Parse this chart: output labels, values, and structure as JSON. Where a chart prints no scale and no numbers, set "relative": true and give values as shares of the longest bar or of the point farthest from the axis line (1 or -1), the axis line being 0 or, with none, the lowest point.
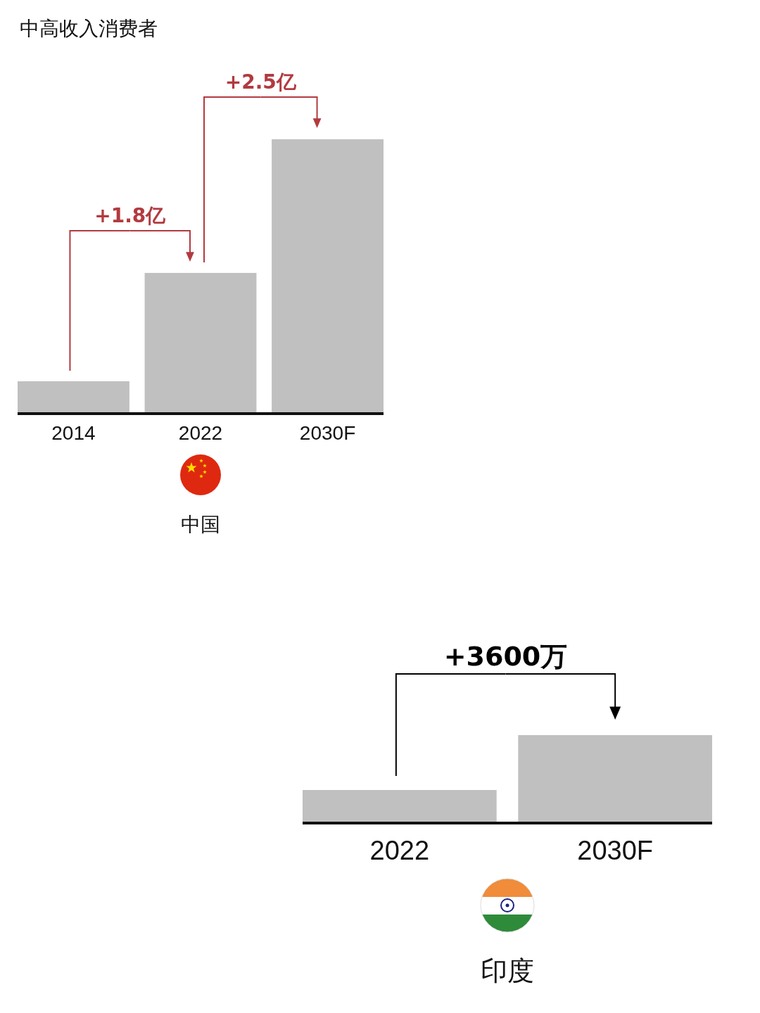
{
  "chart_data": [
    {
      "type": "bar",
      "title": "中高收入消费者",
      "categories": [
        "2014",
        "2022",
        "2030F"
      ],
      "values": [
        0.118,
        0.513,
        1
      ],
      "color": "#c0c0c0",
      "relative": true,
      "xlabel": "中国",
      "annotations": [
        "+1.8亿",
        "+2.5亿"
      ]
    },
    {
      "type": "bar",
      "categories": [
        "2022",
        "2030F"
      ],
      "values": [
        0.376,
        1
      ],
      "color": "#c0c0c0",
      "relative": true,
      "xlabel": "印度",
      "annotations": [
        "+3600万"
      ]
    }
  ]
}
